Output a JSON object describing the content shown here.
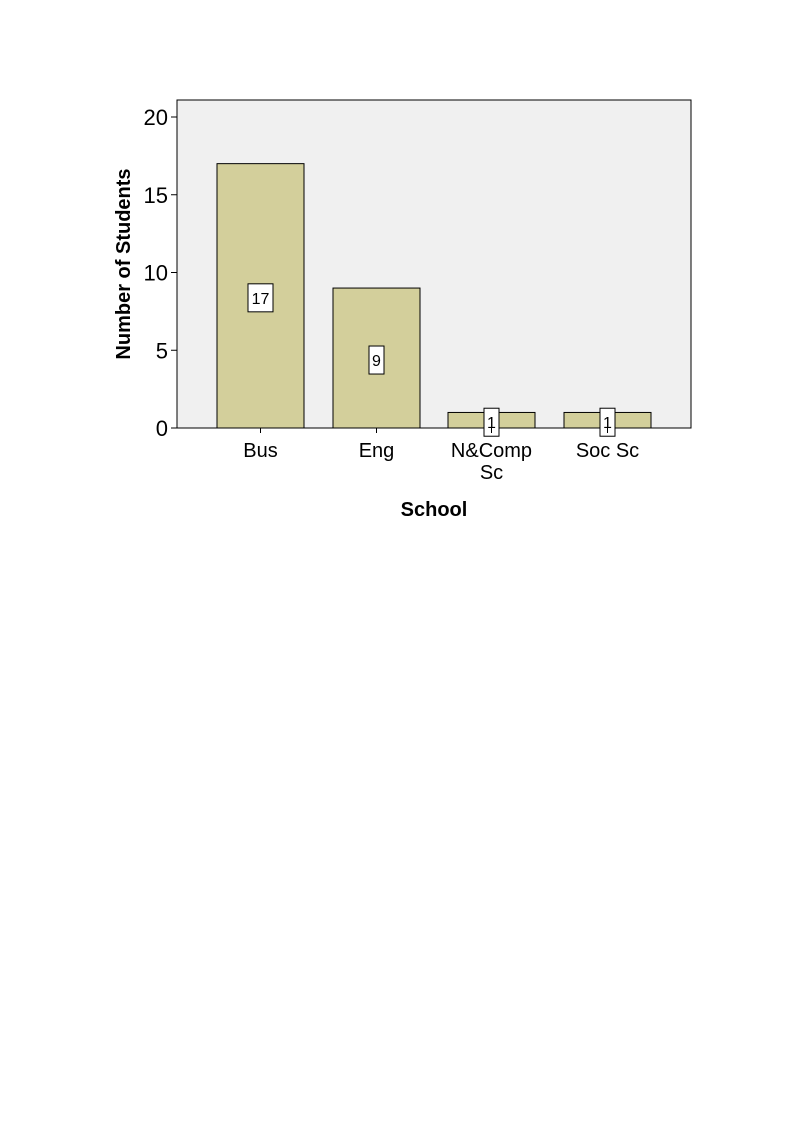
{
  "chart_data": {
    "type": "bar",
    "title": "",
    "xlabel": "School",
    "ylabel": "Number of Students",
    "categories": [
      "Bus",
      "Eng",
      "N&Comp Sc",
      "Soc Sc"
    ],
    "category_lines": [
      [
        "Bus"
      ],
      [
        "Eng"
      ],
      [
        "N&Comp",
        "Sc"
      ],
      [
        "Soc Sc"
      ]
    ],
    "values": [
      17,
      9,
      1,
      1
    ],
    "data_labels": [
      "17",
      "9",
      "1",
      "1"
    ],
    "ylim": [
      0,
      21
    ],
    "yticks": [
      0,
      5,
      10,
      15,
      20
    ],
    "grid": false,
    "colors": {
      "bar": "#d3cf9b",
      "plot_background": "#f0f0f0",
      "outline": "#000000"
    }
  }
}
